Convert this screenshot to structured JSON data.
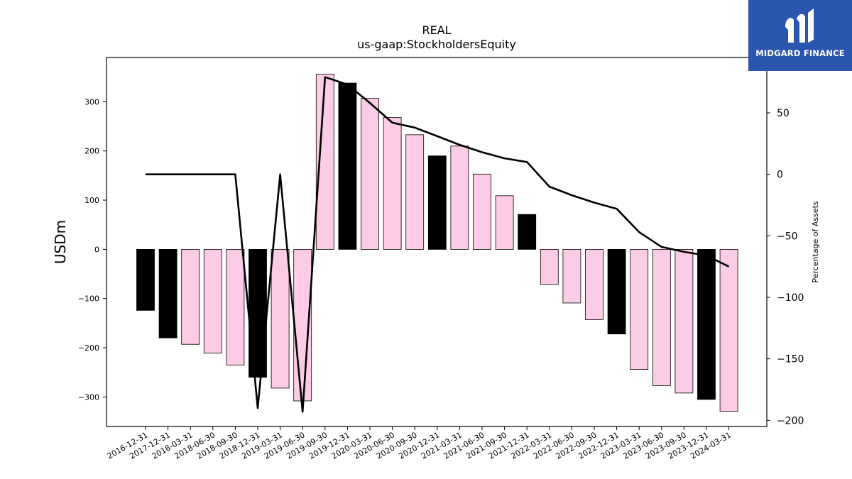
{
  "brand": {
    "name": "MIDGARD FINANCE",
    "bg_color": "#2a56b0"
  },
  "colors": {
    "bar_black": "#000000",
    "bar_pink": "#fccce6",
    "line": "#000000"
  },
  "chart_data": {
    "type": "bar",
    "title": "REAL",
    "subtitle": "us-gaap:StockholdersEquity",
    "ylabel": "USDm",
    "y2label": "Percentage of Assets",
    "ylim": [
      -360,
      390
    ],
    "y2lim": [
      -205,
      95
    ],
    "yticks": [
      -300,
      -200,
      -100,
      0,
      100,
      200,
      300
    ],
    "y2ticks": [
      -200,
      -150,
      -100,
      -50,
      0,
      50
    ],
    "grid": false,
    "categories": [
      "2016-12-31",
      "2017-12-31",
      "2018-03-31",
      "2018-06-30",
      "2018-09-30",
      "2018-12-31",
      "2019-03-31",
      "2019-06-30",
      "2019-09-30",
      "2019-12-31",
      "2020-03-31",
      "2020-06-30",
      "2020-09-30",
      "2020-12-31",
      "2021-03-31",
      "2021-06-30",
      "2021-09-30",
      "2021-12-31",
      "2022-03-31",
      "2022-06-30",
      "2022-09-30",
      "2022-12-31",
      "2023-03-31",
      "2023-06-30",
      "2023-09-30",
      "2023-12-31",
      "2024-03-31"
    ],
    "series": [
      {
        "values": [
          -124,
          -180,
          -193,
          -211,
          -235,
          -260,
          -282,
          -308,
          356,
          338,
          307,
          268,
          233,
          190,
          210,
          153,
          109,
          71,
          -71,
          -109,
          -143,
          -172,
          -244,
          -277,
          -292,
          -305,
          -329
        ],
        "colors": [
          "black",
          "black",
          "pink",
          "pink",
          "pink",
          "black",
          "pink",
          "pink",
          "pink",
          "black",
          "pink",
          "pink",
          "pink",
          "black",
          "pink",
          "pink",
          "pink",
          "black",
          "pink",
          "pink",
          "pink",
          "black",
          "pink",
          "pink",
          "pink",
          "black",
          "pink"
        ]
      },
      {
        "values": [
          0,
          0,
          0,
          0,
          0,
          -190,
          0,
          -193,
          79,
          73,
          58,
          42,
          38,
          31,
          24,
          18,
          13,
          10,
          -10,
          -17,
          -23,
          -28,
          -47,
          -59,
          -63,
          -66,
          -75
        ]
      }
    ]
  }
}
